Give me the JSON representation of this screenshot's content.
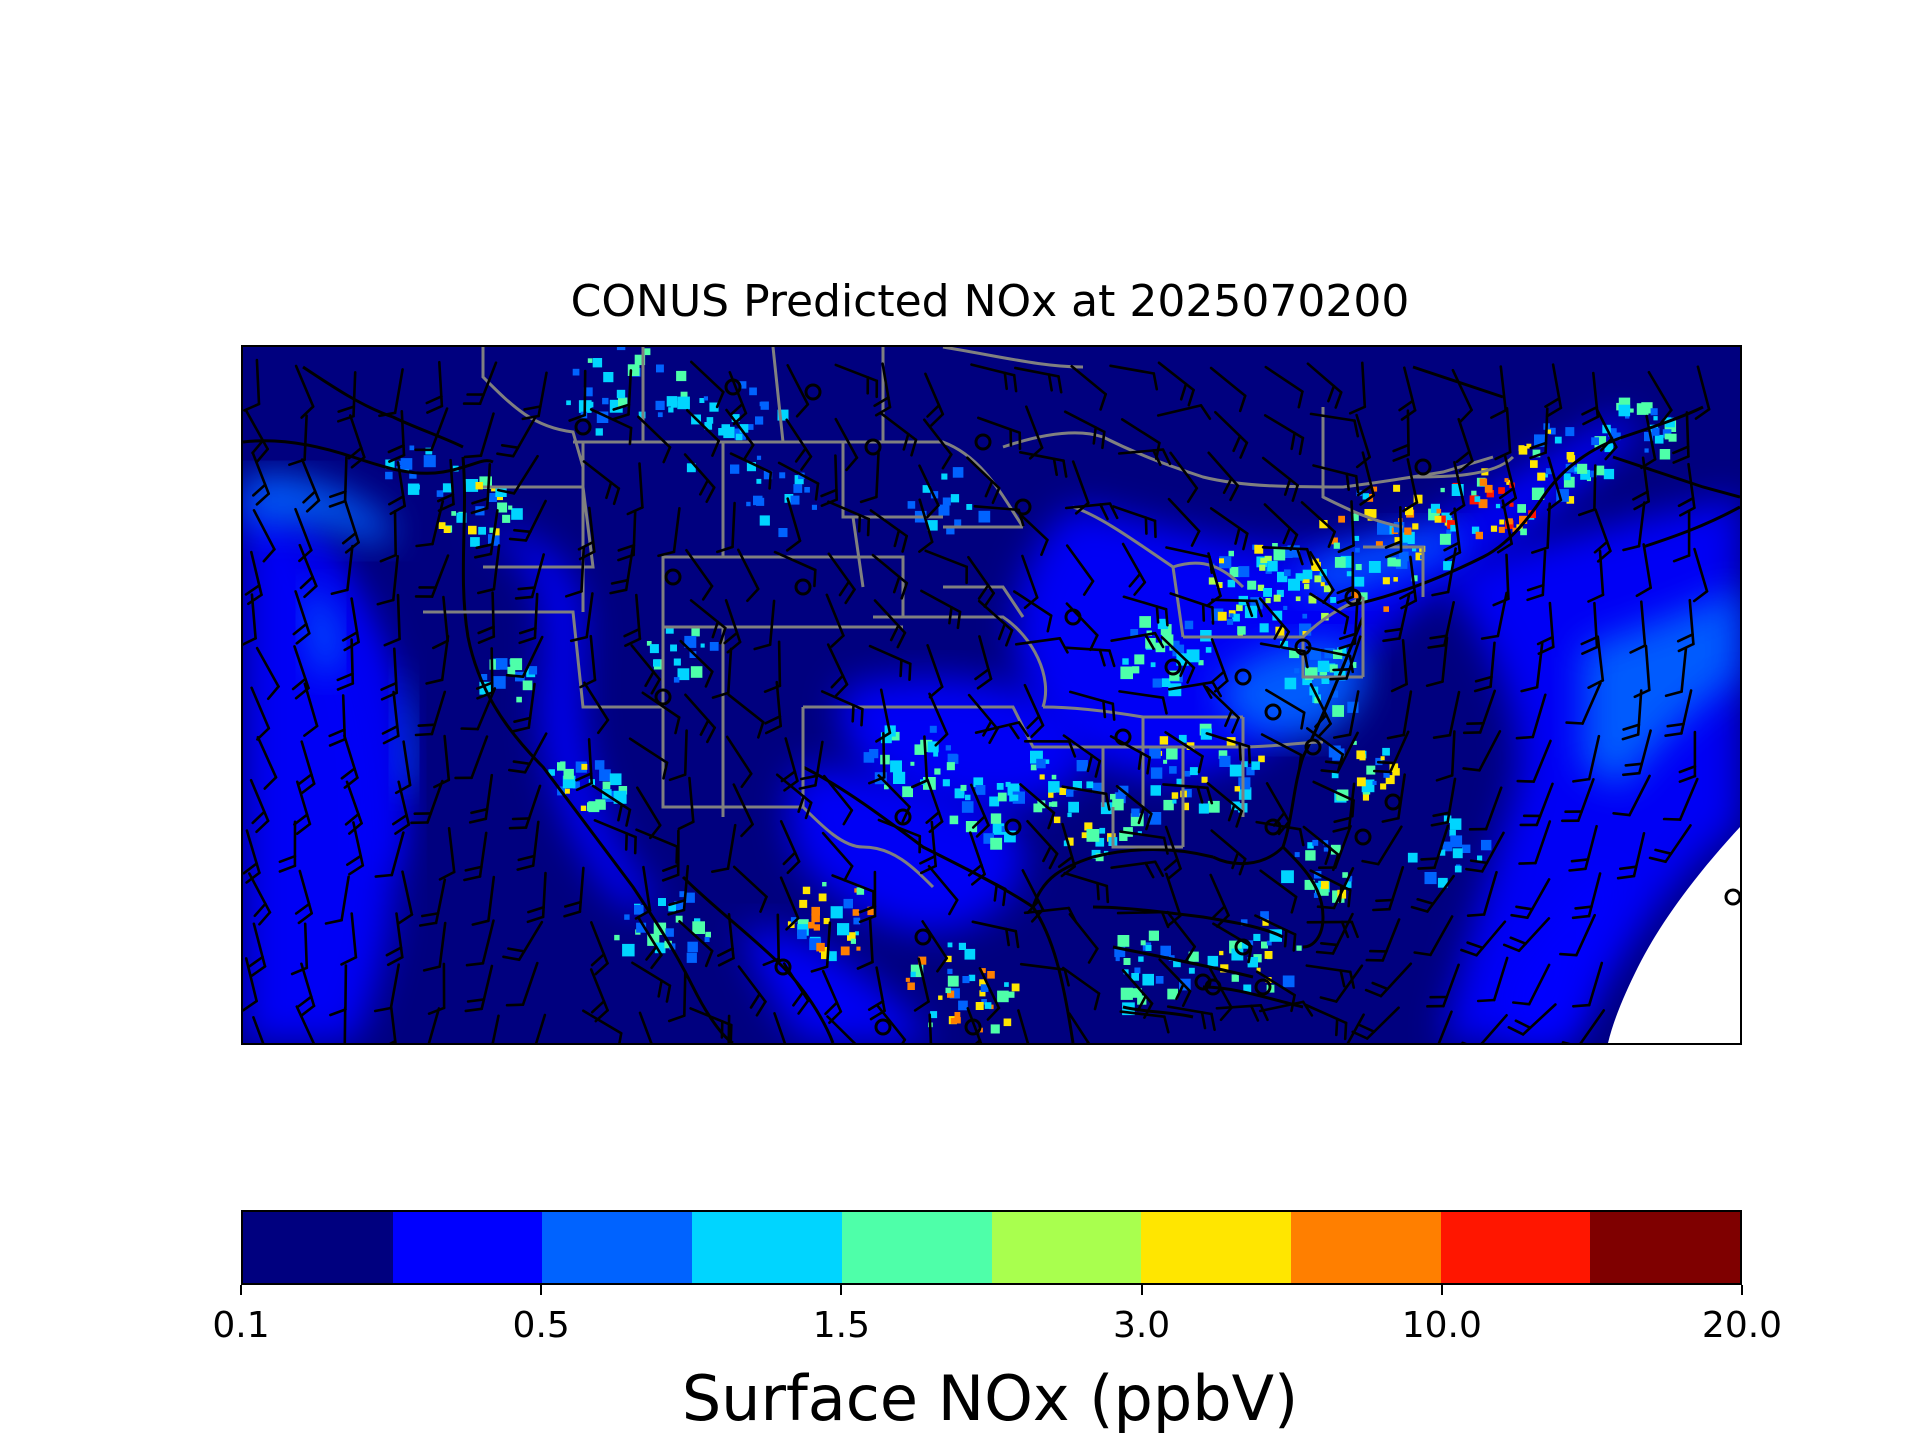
{
  "title": "CONUS Predicted NOx at 2025070200",
  "map": {
    "region": "CONUS",
    "variable": "Surface NOx",
    "overlays": [
      "state-boundaries",
      "coastlines",
      "wind-barbs",
      "calm-wind-circles"
    ],
    "background_level_color": "#00007f",
    "coast_color": "#000000",
    "border_color": "#808080"
  },
  "colorbar": {
    "label": "Surface NOx (ppbV)",
    "ticks": [
      "0.1",
      "0.5",
      "1.5",
      "3.0",
      "10.0",
      "20.0"
    ],
    "colors": [
      "#00007f",
      "#0000ff",
      "#0063ff",
      "#00d5ff",
      "#4effa9",
      "#a9ff4e",
      "#ffe600",
      "#ff7f00",
      "#ff1600",
      "#7f0000"
    ]
  }
}
